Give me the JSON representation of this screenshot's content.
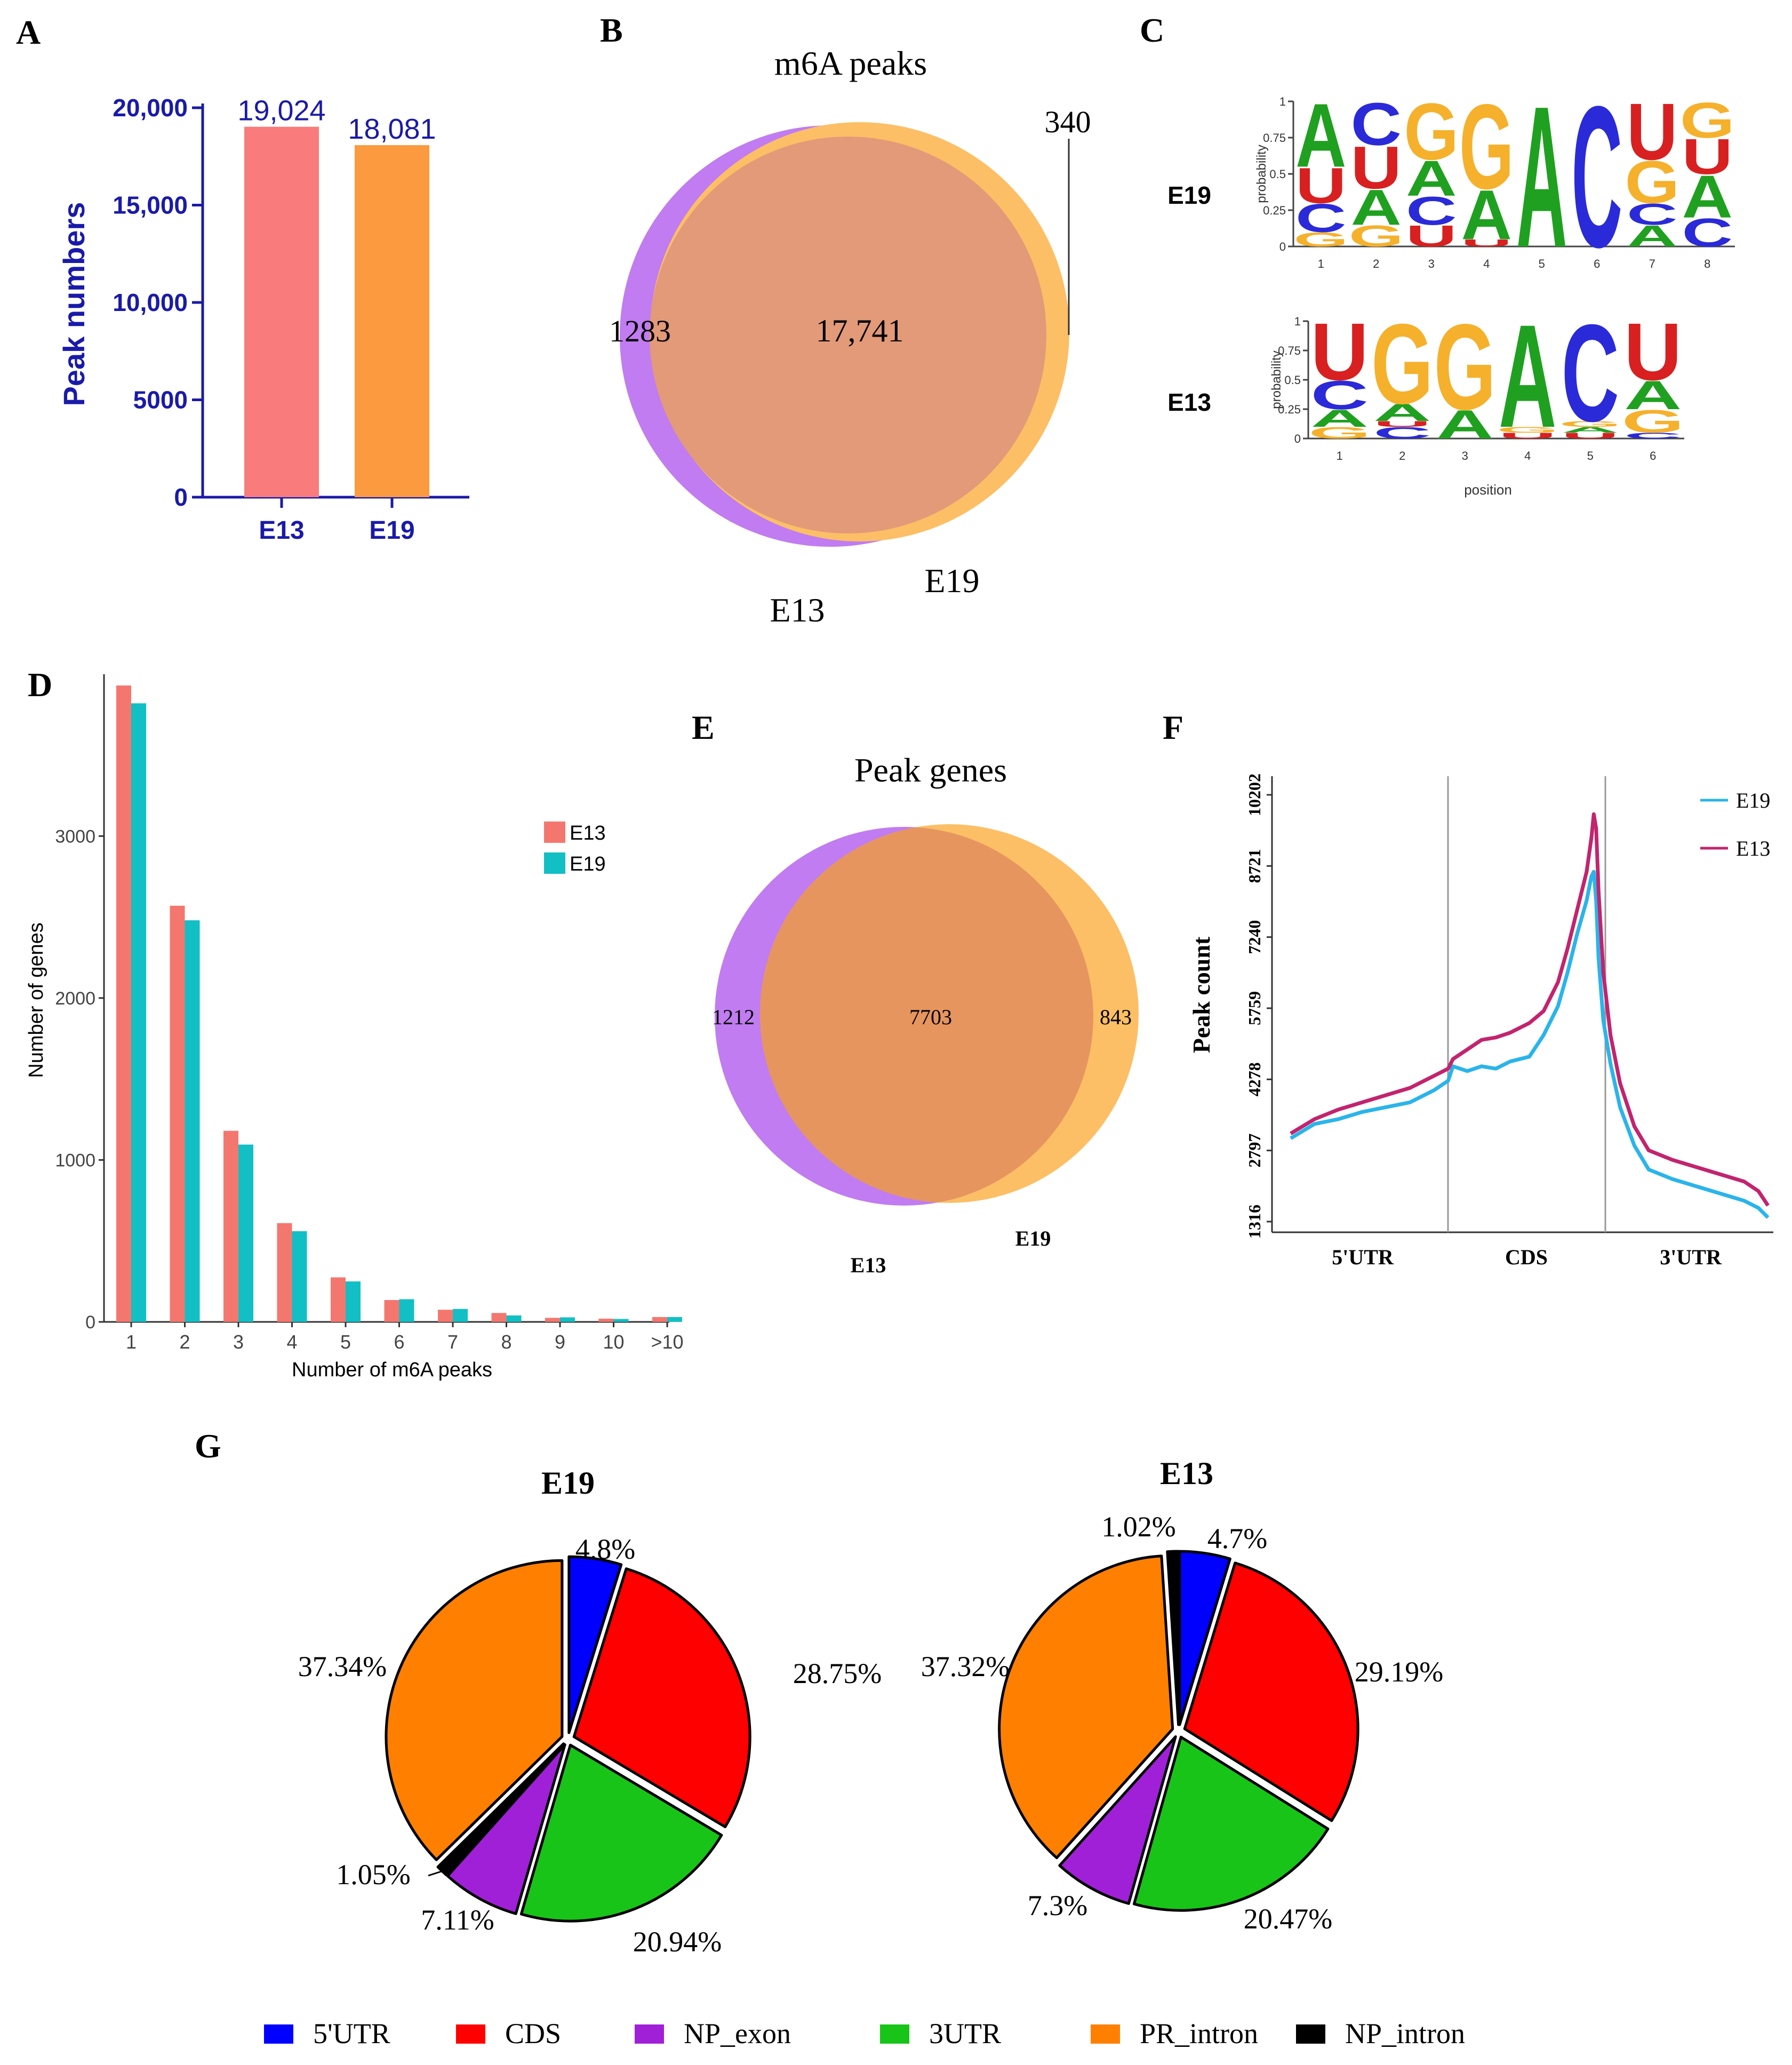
{
  "panels": {
    "A": "A",
    "B": "B",
    "C": "C",
    "D": "D",
    "E": "E",
    "F": "F",
    "G": "G"
  },
  "colors": {
    "blue_axis": "#1a1aa8",
    "bar_e13": "#f97b7b",
    "bar_e19": "#fb9a3e",
    "venn_purple": "#c07cf0",
    "venn_orange": "#fcbf66",
    "venn_overlap": "#e39a78",
    "genes_overlap": "#e6955f",
    "d_e13": "#f4776f",
    "d_e19": "#12bfc4",
    "line_e19": "#2ab4ea",
    "line_e13": "#c2246e",
    "pie_5utr": "#0000ff",
    "pie_cds": "#ff0000",
    "pie_npexon": "#a020d8",
    "pie_3utr": "#19c419",
    "pie_printron": "#ff8000",
    "pie_npintron": "#000000"
  },
  "chart_data": [
    {
      "id": "A",
      "type": "bar",
      "categories": [
        "E13",
        "E19"
      ],
      "values": [
        19024,
        18081
      ],
      "value_labels": [
        "19,024",
        "18,081"
      ],
      "ylabel": "Peak numbers",
      "ylim": [
        0,
        20000
      ],
      "yticks": [
        0,
        5000,
        10000,
        15000,
        20000
      ],
      "ytick_labels": [
        "0",
        "5000",
        "10,000",
        "15,000",
        "20,000"
      ]
    },
    {
      "id": "B",
      "type": "venn",
      "title": "m6A peaks",
      "sets": [
        "E13",
        "E19"
      ],
      "only_left": "1283",
      "overlap": "17,741",
      "only_right": "340"
    },
    {
      "id": "C",
      "type": "sequence-logo",
      "logos": [
        {
          "name": "E19",
          "positions": [
            "1",
            "2",
            "3",
            "4",
            "5",
            "6",
            "7",
            "8"
          ],
          "stacks": [
            [
              [
                "G",
                0.1
              ],
              [
                "C",
                0.2
              ],
              [
                "U",
                0.25
              ],
              [
                "A",
                0.45
              ]
            ],
            [
              [
                "G",
                0.15
              ],
              [
                "A",
                0.25
              ],
              [
                "U",
                0.3
              ],
              [
                "C",
                0.3
              ]
            ],
            [
              [
                "U",
                0.15
              ],
              [
                "C",
                0.2
              ],
              [
                "A",
                0.25
              ],
              [
                "G",
                0.4
              ]
            ],
            [
              [
                "U",
                0.05
              ],
              [
                "A",
                0.35
              ],
              [
                "G",
                0.6
              ]
            ],
            [
              [
                "A",
                1.0
              ]
            ],
            [
              [
                "C",
                1.0
              ]
            ],
            [
              [
                "A",
                0.15
              ],
              [
                "C",
                0.15
              ],
              [
                "G",
                0.3
              ],
              [
                "U",
                0.4
              ]
            ],
            [
              [
                "C",
                0.2
              ],
              [
                "A",
                0.3
              ],
              [
                "U",
                0.25
              ],
              [
                "G",
                0.25
              ]
            ]
          ]
        },
        {
          "name": "E13",
          "positions": [
            "1",
            "2",
            "3",
            "4",
            "5",
            "6"
          ],
          "stacks": [
            [
              [
                "G",
                0.1
              ],
              [
                "A",
                0.15
              ],
              [
                "C",
                0.25
              ],
              [
                "U",
                0.5
              ]
            ],
            [
              [
                "C",
                0.1
              ],
              [
                "U",
                0.05
              ],
              [
                "A",
                0.15
              ],
              [
                "G",
                0.7
              ]
            ],
            [
              [
                "A",
                0.25
              ],
              [
                "G",
                0.75
              ]
            ],
            [
              [
                "U",
                0.05
              ],
              [
                "G",
                0.05
              ],
              [
                "A",
                0.9
              ]
            ],
            [
              [
                "U",
                0.05
              ],
              [
                "A",
                0.05
              ],
              [
                "G",
                0.05
              ],
              [
                "C",
                0.85
              ]
            ],
            [
              [
                "C",
                0.05
              ],
              [
                "G",
                0.2
              ],
              [
                "A",
                0.25
              ],
              [
                "U",
                0.5
              ]
            ]
          ]
        }
      ],
      "ylabel": "probability",
      "xlabel": "position",
      "yticks": [
        0,
        0.25,
        0.5,
        0.75,
        1
      ],
      "ytick_labels": [
        "0",
        "0.25",
        "0.5",
        "0.75",
        "1"
      ]
    },
    {
      "id": "D",
      "type": "bar",
      "categories": [
        "1",
        "2",
        "3",
        "4",
        "5",
        "6",
        "7",
        "8",
        "9",
        "10",
        ">10"
      ],
      "series": [
        {
          "name": "E13",
          "values": [
            3930,
            2570,
            1180,
            610,
            275,
            135,
            75,
            55,
            25,
            20,
            30
          ]
        },
        {
          "name": "E19",
          "values": [
            3820,
            2480,
            1095,
            560,
            250,
            140,
            80,
            40,
            28,
            18,
            30
          ]
        }
      ],
      "xlabel": "Number of m6A peaks",
      "ylabel": "Number of genes",
      "ylim": [
        0,
        4000
      ],
      "yticks": [
        0,
        1000,
        2000,
        3000
      ],
      "ytick_labels": [
        "0",
        "1000",
        "2000",
        "3000"
      ],
      "legend": "right"
    },
    {
      "id": "E",
      "type": "venn",
      "title": "Peak genes",
      "sets": [
        "E13",
        "E19"
      ],
      "only_left": "1212",
      "overlap": "7703",
      "only_right": "843"
    },
    {
      "id": "F",
      "type": "line",
      "ylabel": "Peak count",
      "ylim": [
        1316,
        10202
      ],
      "yticks": [
        1316,
        2797,
        4278,
        5759,
        7240,
        8721,
        10202
      ],
      "ytick_labels": [
        "1316",
        "2797",
        "4278",
        "5759",
        "7240",
        "8721",
        "10202"
      ],
      "regions": [
        "5'UTR",
        "CDS",
        "3'UTR"
      ],
      "x": [
        0,
        0.05,
        0.1,
        0.15,
        0.2,
        0.25,
        0.3,
        0.33,
        0.34,
        0.37,
        0.4,
        0.43,
        0.46,
        0.5,
        0.53,
        0.56,
        0.58,
        0.6,
        0.62,
        0.63,
        0.635,
        0.64,
        0.645,
        0.655,
        0.67,
        0.69,
        0.72,
        0.75,
        0.8,
        0.85,
        0.9,
        0.95,
        0.98,
        1.0
      ],
      "series": [
        {
          "name": "E19",
          "values": [
            3050,
            3350,
            3450,
            3600,
            3700,
            3800,
            4050,
            4250,
            4550,
            4450,
            4550,
            4500,
            4650,
            4750,
            5200,
            5800,
            6500,
            7300,
            8000,
            8500,
            8600,
            8000,
            6800,
            5500,
            4600,
            3700,
            2900,
            2400,
            2200,
            2050,
            1900,
            1750,
            1600,
            1400
          ]
        },
        {
          "name": "E13",
          "values": [
            3150,
            3450,
            3650,
            3800,
            3950,
            4100,
            4350,
            4500,
            4700,
            4900,
            5100,
            5150,
            5250,
            5450,
            5700,
            6300,
            7000,
            7800,
            8600,
            9300,
            9800,
            9500,
            8200,
            6500,
            5200,
            4200,
            3300,
            2800,
            2600,
            2450,
            2300,
            2150,
            1950,
            1650
          ]
        }
      ],
      "legend": "top-right"
    },
    {
      "id": "G",
      "type": "pie",
      "categories": [
        "5'UTR",
        "CDS",
        "NP_exon",
        "3UTR",
        "PR_intron",
        "NP_intron"
      ],
      "pies": [
        {
          "title": "E19",
          "values": [
            4.8,
            28.75,
            7.11,
            20.94,
            37.34,
            1.05
          ],
          "labels": [
            "4.8%",
            "28.75%",
            "7.11%",
            "20.94%",
            "37.34%",
            "1.05%"
          ],
          "order": [
            0,
            1,
            3,
            2,
            5,
            4
          ]
        },
        {
          "title": "E13",
          "values": [
            4.7,
            29.19,
            7.3,
            20.47,
            37.32,
            1.02
          ],
          "labels": [
            "4.7%",
            "29.19%",
            "7.3%",
            "20.47%",
            "37.32%",
            "1.02%"
          ],
          "order": [
            0,
            1,
            3,
            2,
            4,
            5
          ]
        }
      ]
    }
  ]
}
